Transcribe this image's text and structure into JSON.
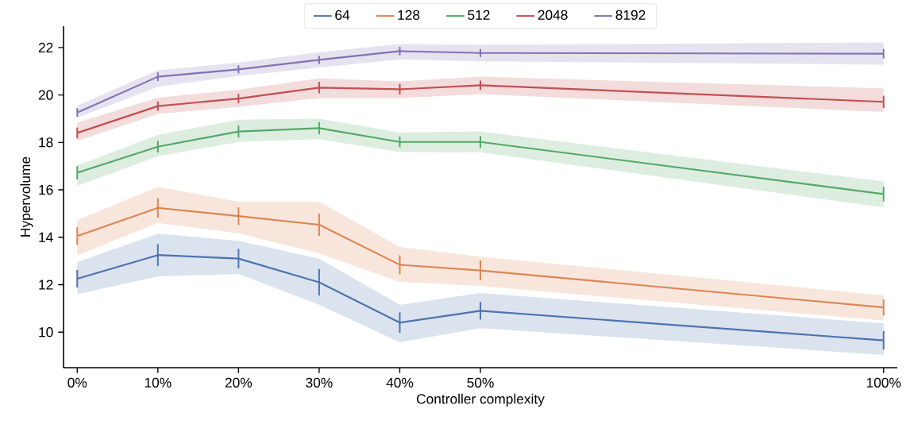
{
  "chart_data": {
    "type": "line",
    "xlabel": "Controller complexity",
    "ylabel": "Hypervolume",
    "x": [
      0,
      10,
      20,
      30,
      40,
      50,
      100
    ],
    "series": [
      {
        "name": "64",
        "color": "#4c72b0",
        "values": [
          12.25,
          13.25,
          13.1,
          12.1,
          10.4,
          10.9,
          9.65
        ],
        "errors": [
          0.37,
          0.46,
          0.41,
          0.56,
          0.43,
          0.37,
          0.39
        ],
        "lower": [
          11.6,
          12.35,
          12.45,
          11.15,
          9.57,
          10.17,
          9.04
        ],
        "upper": [
          12.95,
          14.15,
          13.85,
          13.1,
          11.15,
          11.65,
          10.37
        ]
      },
      {
        "name": "128",
        "color": "#dd8452",
        "values": [
          14.05,
          15.24,
          14.89,
          14.53,
          12.84,
          12.6,
          11.04
        ],
        "errors": [
          0.37,
          0.41,
          0.37,
          0.47,
          0.4,
          0.42,
          0.34
        ],
        "lower": [
          13.24,
          14.6,
          14.17,
          13.31,
          12.12,
          11.95,
          10.49
        ],
        "upper": [
          14.72,
          16.13,
          15.5,
          15.5,
          13.59,
          13.18,
          11.55
        ]
      },
      {
        "name": "512",
        "color": "#55a868",
        "values": [
          16.72,
          17.82,
          18.46,
          18.6,
          18.02,
          18.02,
          15.82
        ],
        "errors": [
          0.28,
          0.25,
          0.26,
          0.26,
          0.23,
          0.25,
          0.31
        ],
        "lower": [
          16.16,
          17.42,
          18.02,
          18.14,
          17.59,
          17.58,
          15.26
        ],
        "upper": [
          17.02,
          18.32,
          18.96,
          19.0,
          18.42,
          18.46,
          16.35
        ]
      },
      {
        "name": "2048",
        "color": "#c44e52",
        "values": [
          18.4,
          19.53,
          19.85,
          20.31,
          20.24,
          20.41,
          19.71
        ],
        "errors": [
          0.23,
          0.2,
          0.2,
          0.24,
          0.22,
          0.2,
          0.26
        ],
        "lower": [
          18.06,
          19.2,
          19.5,
          19.87,
          19.87,
          20.04,
          19.28
        ],
        "upper": [
          18.83,
          19.89,
          20.22,
          20.7,
          20.57,
          20.77,
          20.28
        ]
      },
      {
        "name": "8192",
        "color": "#8172b3",
        "values": [
          19.26,
          20.77,
          21.08,
          21.48,
          21.85,
          21.77,
          21.74
        ],
        "errors": [
          0.18,
          0.18,
          0.17,
          0.17,
          0.18,
          0.17,
          0.2
        ],
        "lower": [
          19.04,
          20.35,
          20.8,
          21.16,
          21.5,
          21.42,
          21.28
        ],
        "upper": [
          19.55,
          21.04,
          21.37,
          21.8,
          22.15,
          22.12,
          22.21
        ]
      }
    ],
    "xlim": [
      -1.7,
      101.7
    ],
    "ylim": [
      8.5,
      22.9
    ],
    "xticks": [
      {
        "value": 0,
        "label": "0%"
      },
      {
        "value": 10,
        "label": "10%"
      },
      {
        "value": 20,
        "label": "20%"
      },
      {
        "value": 30,
        "label": "30%"
      },
      {
        "value": 40,
        "label": "40%"
      },
      {
        "value": 50,
        "label": "50%"
      },
      {
        "value": 100,
        "label": "100%"
      }
    ],
    "yticks": [
      10,
      12,
      14,
      16,
      18,
      20,
      22
    ],
    "legend": "top"
  }
}
